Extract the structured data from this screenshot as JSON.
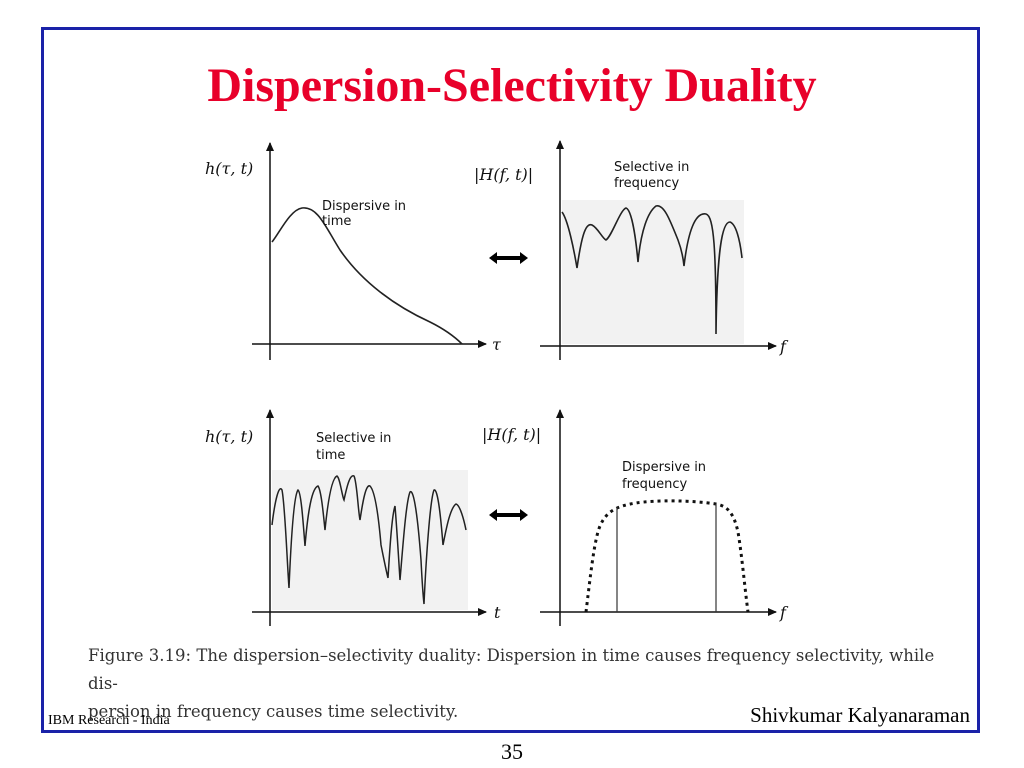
{
  "slide": {
    "title": "Dispersion-Selectivity Duality",
    "footer_left": "IBM Research - India",
    "footer_right": "Shivkumar Kalyanaraman",
    "page_number": "35",
    "frame_color": "#1a22a8",
    "title_color": "#e8002a"
  },
  "figure": {
    "panels": [
      {
        "id": "top-left",
        "ylabel": "h(τ, t)",
        "xlabel": "τ",
        "annotation": [
          "Dispersive in",
          "time"
        ]
      },
      {
        "id": "top-right",
        "ylabel": "|H(f, t)|",
        "xlabel": "f",
        "annotation": [
          "Selective in",
          "frequency"
        ]
      },
      {
        "id": "bottom-left",
        "ylabel": "h(τ, t)",
        "xlabel": "t",
        "annotation": [
          "Selective in",
          "time"
        ]
      },
      {
        "id": "bottom-right",
        "ylabel": "|H(f, t)|",
        "xlabel": "f",
        "annotation": [
          "Dispersive in",
          "frequency"
        ]
      }
    ],
    "caption_line1": "Figure 3.19: The dispersion–selectivity duality: Dispersion in time causes frequency selectivity, while dis-",
    "caption_line2": "persion in frequency causes time selectivity."
  }
}
